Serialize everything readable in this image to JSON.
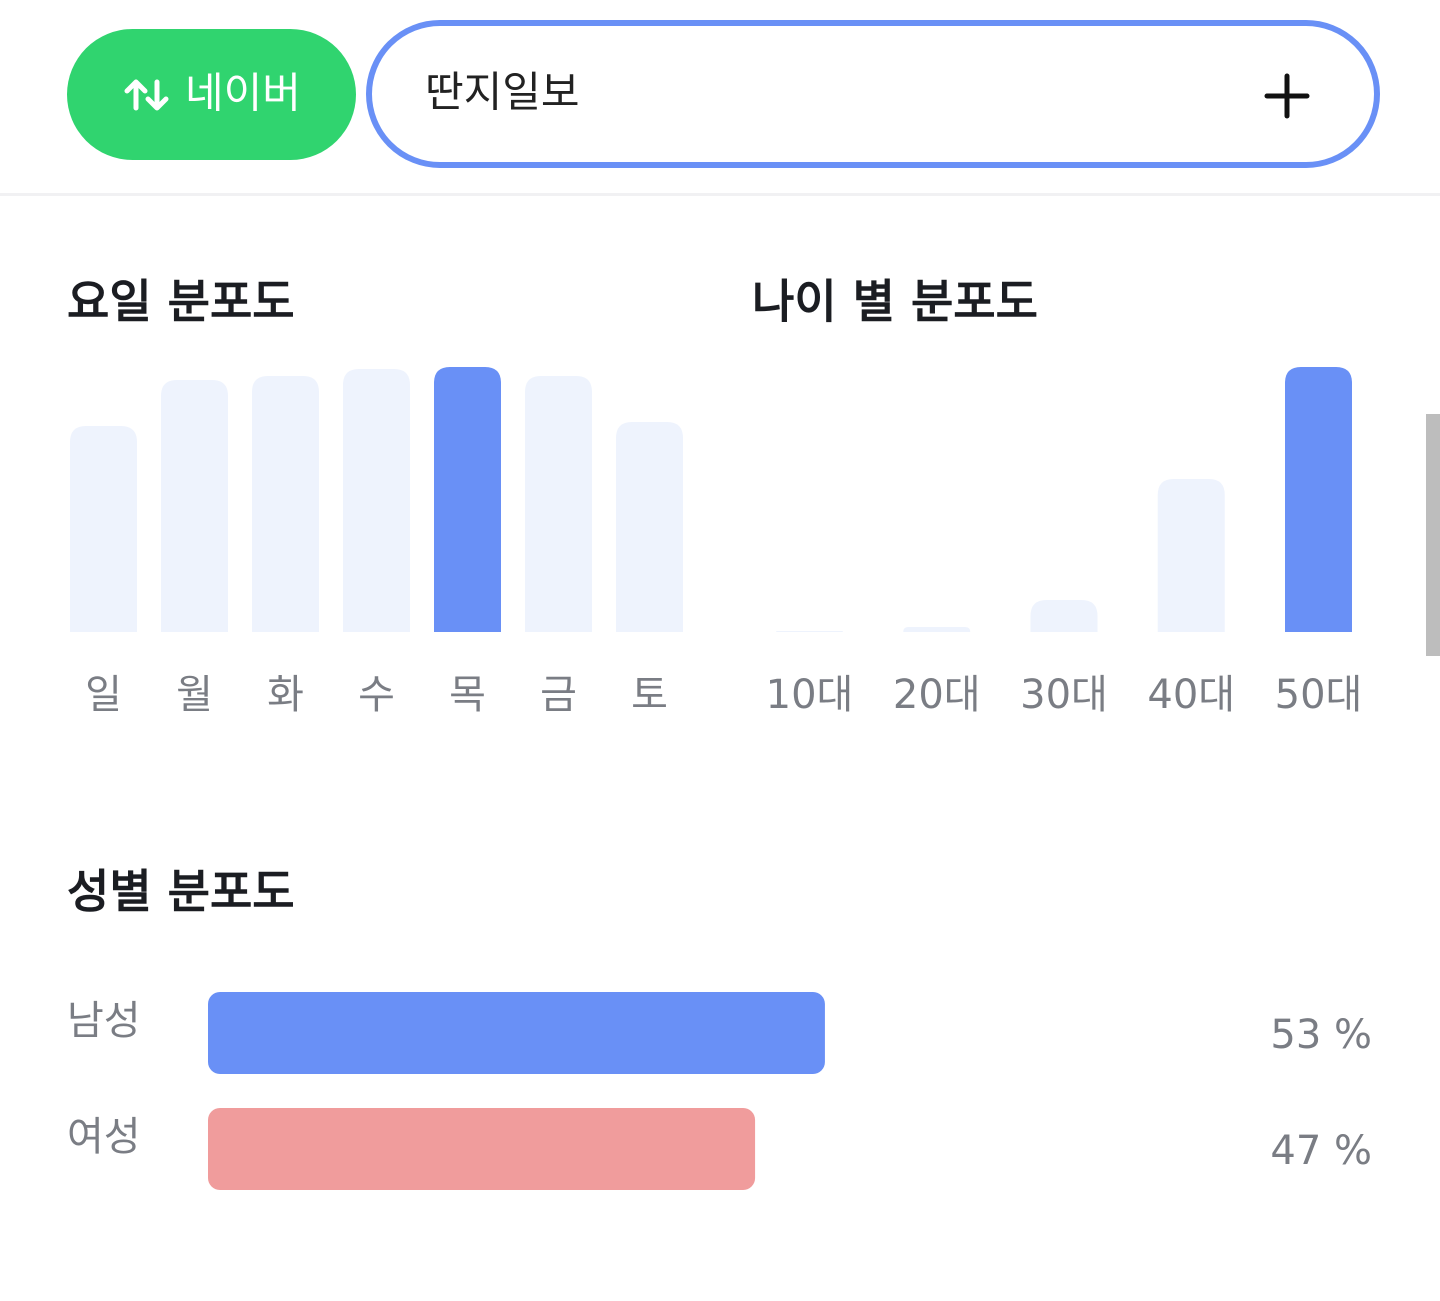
{
  "header": {
    "button": "네이버",
    "search": "딴지일보"
  },
  "chart_data": [
    {
      "type": "bar",
      "title": "요일 분포도",
      "categories": [
        "일",
        "월",
        "화",
        "수",
        "목",
        "금",
        "토"
      ],
      "values": [
        206,
        252,
        256,
        263,
        265,
        256,
        210
      ],
      "colors": [
        "#eef3fd",
        "#eef3fd",
        "#eef3fd",
        "#eef3fd",
        "#6990f6",
        "#eef3fd",
        "#eef3fd"
      ]
    },
    {
      "type": "bar",
      "title": "나이 별 분포도",
      "categories": [
        "10대",
        "20대",
        "30대",
        "40대",
        "50대"
      ],
      "values": [
        1,
        5,
        32,
        153,
        265
      ],
      "colors": [
        "#eef3fd",
        "#eef3fd",
        "#eef3fd",
        "#eef3fd",
        "#6990f6"
      ]
    },
    {
      "type": "hbar",
      "title": "성별 분포도",
      "categories": [
        "남성",
        "여성"
      ],
      "values": [
        53,
        47
      ],
      "value_labels": [
        "53 %",
        "47 %"
      ],
      "colors": [
        "#6990f6",
        "#f09c9c"
      ]
    }
  ]
}
